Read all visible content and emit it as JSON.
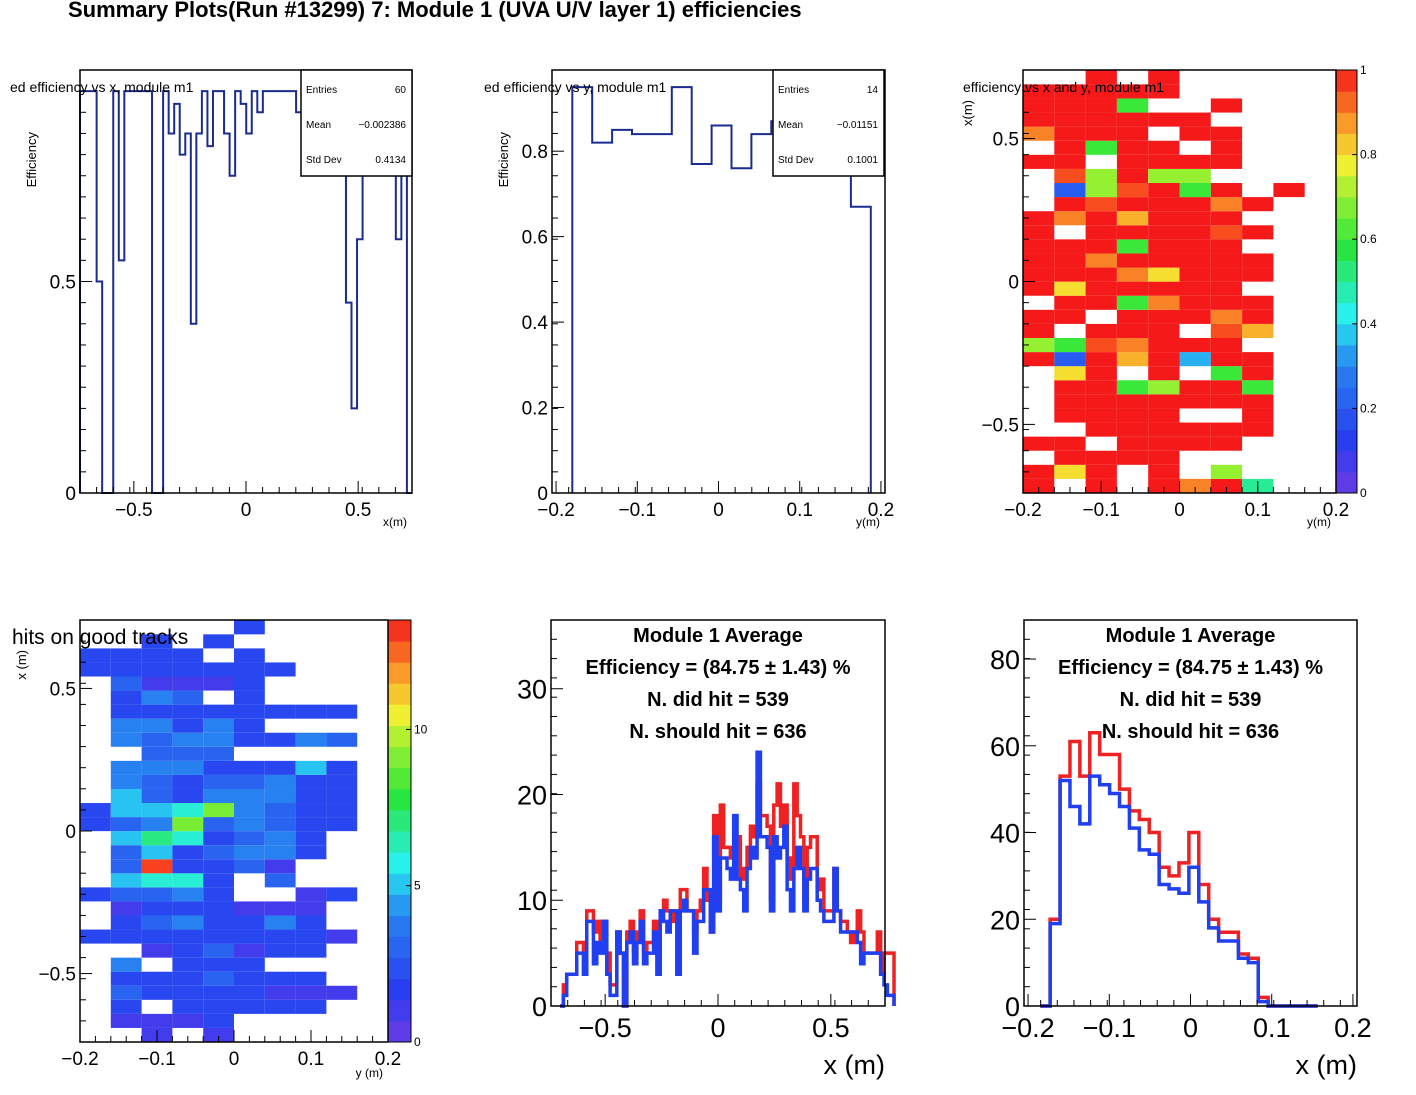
{
  "page_title": "Summary Plots(Run #13299) 7: Module 1 (UVA U/V layer 1) efficiencies",
  "colors": {
    "line": "#1a2c8f",
    "blue_hist": "#1f3ff0",
    "red_hist": "#ee2222",
    "frame": "#000000"
  },
  "chart_data": [
    {
      "type": "line",
      "title": "ed efficiency vs x, module m1",
      "xlabel": "x(m)",
      "ylabel": "Efficiency",
      "xlim": [
        -0.74,
        0.74
      ],
      "ylim": [
        0,
        1.0
      ],
      "xticks": [
        -0.5,
        0,
        0.5
      ],
      "xtick_labels": [
        "−0.5",
        "0",
        "0.5"
      ],
      "yticks": [
        0,
        0.5
      ],
      "ytick_labels": [
        "0",
        "0.5"
      ],
      "stats": {
        "Entries": "60",
        "Mean": "−0.002386",
        "Std Dev": "0.4134"
      },
      "x_edges_start": -0.74,
      "bin_width": 0.0247,
      "values": [
        0.95,
        0.95,
        0.95,
        0.5,
        0,
        0,
        0.95,
        0.55,
        0.95,
        0.95,
        0.95,
        0.95,
        0.95,
        0,
        0,
        0.95,
        0.85,
        0.92,
        0.8,
        0.85,
        0.4,
        0.85,
        0.95,
        0.82,
        0.95,
        0.95,
        0.85,
        0.75,
        0.95,
        0.92,
        0.85,
        0.95,
        0.9,
        0.95,
        0.95,
        0.95,
        0.95,
        0.95,
        0.95,
        0.9,
        0.95,
        0.95,
        0.95,
        0.95,
        0.95,
        0.95,
        0.95,
        0.95,
        0.45,
        0.2,
        0.6,
        0.95,
        0.95,
        0.95,
        0.95,
        0.95,
        0.85,
        0.6,
        0.95,
        0
      ]
    },
    {
      "type": "line",
      "title": "ed efficiency vs y, module m1",
      "xlabel": "y(m)",
      "ylabel": "Efficiency",
      "xlim": [
        -0.205,
        0.205
      ],
      "ylim": [
        0,
        0.99
      ],
      "xticks": [
        -0.2,
        -0.1,
        0,
        0.1,
        0.2
      ],
      "xtick_labels": [
        "−0.2",
        "−0.1",
        "0",
        "0.1",
        "0.2"
      ],
      "yticks": [
        0,
        0.2,
        0.4,
        0.6,
        0.8
      ],
      "ytick_labels": [
        "0",
        "0.2",
        "0.4",
        "0.6",
        "0.8"
      ],
      "stats": {
        "Entries": "14",
        "Mean": "−0.01151",
        "Std Dev": "0.1001"
      },
      "x_edges_start": -0.18,
      "bin_width": 0.0245,
      "values": [
        0.95,
        0.82,
        0.85,
        0.84,
        0.84,
        0.95,
        0.77,
        0.86,
        0.76,
        0.84,
        0.87,
        0.84,
        0.86,
        0.77,
        0.67
      ]
    },
    {
      "type": "heatmap",
      "title": "efficiency vs x and y, module m1",
      "xlabel": "y(m)",
      "ylabel": "x(m)",
      "xlim": [
        -0.2,
        0.2
      ],
      "ylim": [
        -0.74,
        0.74
      ],
      "xticks": [
        -0.2,
        -0.1,
        0,
        0.1,
        0.2
      ],
      "xtick_labels": [
        "−0.2",
        "−0.1",
        "0",
        "0.1",
        "0.2"
      ],
      "yticks": [
        -0.5,
        0,
        0.5
      ],
      "ytick_labels": [
        "−0.5",
        "0",
        "0.5"
      ],
      "zlim": [
        0,
        1
      ],
      "colorbar_labels": [
        "0",
        "0.2",
        "0.4",
        "0.6",
        "0.8",
        "1"
      ],
      "grid_x_start": -0.2,
      "grid_dx": 0.04,
      "grid_y_start": -0.74,
      "grid_dy": 0.0493,
      "cols": 9,
      "rows": 30,
      "cells": [
        [
          1,
          0,
          1,
          0,
          1,
          0.9,
          1,
          0.5,
          0
        ],
        [
          1,
          0.8,
          1,
          0,
          1,
          0,
          0.7,
          0,
          0
        ],
        [
          0,
          1,
          1,
          1,
          1,
          0,
          0,
          0,
          0
        ],
        [
          1,
          1,
          0,
          1,
          1,
          1,
          1,
          0,
          0
        ],
        [
          0,
          0,
          1,
          1,
          1,
          1,
          1,
          1,
          0
        ],
        [
          0,
          1,
          1,
          1,
          1,
          0,
          0,
          1,
          0
        ],
        [
          0,
          1,
          1,
          1,
          1,
          1,
          1,
          1,
          0
        ],
        [
          0,
          1,
          1,
          0.6,
          0.7,
          1,
          1,
          0.6,
          0
        ],
        [
          0,
          0.8,
          1,
          0,
          1,
          0,
          0.6,
          1,
          0
        ],
        [
          1,
          0.2,
          1,
          0.85,
          1,
          0.35,
          1,
          1,
          0
        ],
        [
          0.7,
          0.6,
          0.95,
          0.9,
          1,
          1,
          1,
          0,
          0
        ],
        [
          1,
          0,
          1,
          1,
          1,
          0,
          0.95,
          0.85,
          0
        ],
        [
          1,
          1,
          0,
          1,
          1,
          1,
          0.9,
          1,
          0
        ],
        [
          0,
          1,
          1,
          0.6,
          0.9,
          1,
          1,
          1,
          0
        ],
        [
          1,
          0.8,
          1,
          1,
          1,
          1,
          1,
          0,
          0
        ],
        [
          1,
          1,
          1,
          0.9,
          0.8,
          1,
          1,
          1,
          0
        ],
        [
          1,
          1,
          0.9,
          1,
          1,
          1,
          1,
          1,
          0
        ],
        [
          1,
          1,
          1,
          0.6,
          1,
          1,
          1,
          0,
          0
        ],
        [
          1,
          0,
          1,
          1,
          1,
          1,
          0.95,
          1,
          0
        ],
        [
          1,
          0.9,
          1,
          0.85,
          1,
          1,
          1,
          0,
          0
        ],
        [
          0,
          1,
          0.95,
          1,
          1,
          1,
          0.9,
          1,
          0
        ],
        [
          0,
          0.2,
          0.7,
          0.95,
          1,
          0.6,
          1,
          0,
          1
        ],
        [
          0,
          0.95,
          0.7,
          1,
          0.7,
          0.7,
          0,
          0,
          0
        ],
        [
          1,
          1,
          0,
          1,
          1,
          1,
          1,
          0,
          0
        ],
        [
          0,
          1,
          0.6,
          1,
          1,
          0,
          1,
          0,
          0
        ],
        [
          0.9,
          1,
          1,
          1,
          0,
          1,
          1,
          0,
          0
        ],
        [
          1,
          1,
          1,
          1,
          1,
          1,
          0,
          0,
          0
        ],
        [
          1,
          1,
          1,
          0.6,
          0,
          0,
          1,
          0,
          0
        ],
        [
          1,
          1,
          1,
          1,
          1,
          0,
          0,
          0,
          0
        ],
        [
          0,
          0,
          1,
          0,
          1,
          0,
          0,
          0,
          0
        ]
      ]
    },
    {
      "type": "heatmap",
      "title": "hits on good tracks",
      "xlabel": "y (m)",
      "ylabel": "x (m)",
      "xlim": [
        -0.2,
        0.2
      ],
      "ylim": [
        -0.74,
        0.74
      ],
      "xticks": [
        -0.2,
        -0.1,
        0,
        0.1,
        0.2
      ],
      "xtick_labels": [
        "−0.2",
        "−0.1",
        "0",
        "0.1",
        "0.2"
      ],
      "yticks": [
        -0.5,
        0,
        0.5
      ],
      "ytick_labels": [
        "−0.5",
        "0",
        "0.5"
      ],
      "zlim": [
        0,
        13.5
      ],
      "colorbar_labels": [
        "0",
        "5",
        "10"
      ],
      "grid_x_start": -0.2,
      "grid_dx": 0.04,
      "grid_y_start": -0.74,
      "grid_dy": 0.0493,
      "cols": 9,
      "rows": 30,
      "cells": [
        [
          0,
          0,
          1,
          0,
          1,
          0,
          0,
          0,
          0
        ],
        [
          0,
          1,
          1,
          1,
          2,
          0,
          0,
          0,
          0
        ],
        [
          0,
          2,
          0,
          2,
          2,
          2,
          2,
          2,
          0
        ],
        [
          0,
          3,
          2,
          2,
          2,
          2,
          1,
          1,
          1
        ],
        [
          0,
          2,
          2,
          2,
          3,
          2,
          2,
          2,
          0
        ],
        [
          0,
          4,
          0,
          2,
          2,
          2,
          0,
          0,
          0
        ],
        [
          0,
          0,
          1,
          2,
          3,
          1,
          2,
          2,
          0
        ],
        [
          2,
          2,
          2,
          2,
          2,
          2,
          2,
          2,
          1
        ],
        [
          0,
          2,
          3,
          4,
          2,
          2,
          4,
          2,
          0
        ],
        [
          0,
          1,
          2,
          2,
          2,
          1,
          1,
          1,
          0
        ],
        [
          2,
          3,
          3,
          4,
          2,
          0,
          0,
          1,
          2
        ],
        [
          0,
          5,
          6,
          6,
          2,
          0,
          3,
          0,
          0
        ],
        [
          0,
          3,
          13,
          2,
          2,
          3,
          1,
          0,
          0
        ],
        [
          0,
          3,
          5,
          2,
          3,
          4,
          4,
          2,
          0
        ],
        [
          0,
          5,
          7,
          6,
          2,
          3,
          4,
          2,
          0
        ],
        [
          2,
          3,
          4,
          9,
          3,
          4,
          3,
          2,
          2
        ],
        [
          2,
          5,
          5,
          6,
          9,
          4,
          3,
          2,
          2
        ],
        [
          0,
          5,
          3,
          2,
          4,
          4,
          4,
          2,
          2
        ],
        [
          0,
          4,
          3,
          2,
          3,
          3,
          4,
          2,
          2
        ],
        [
          0,
          4,
          4,
          4,
          2,
          2,
          2,
          5,
          2
        ],
        [
          0,
          0,
          3,
          3,
          3,
          0,
          0,
          0,
          0
        ],
        [
          0,
          4,
          3,
          4,
          4,
          2,
          2,
          4,
          3
        ],
        [
          0,
          4,
          4,
          2,
          4,
          2,
          0,
          0,
          0
        ],
        [
          0,
          2,
          2,
          2,
          2,
          2,
          2,
          2,
          2
        ],
        [
          0,
          2,
          4,
          3,
          0,
          2,
          0,
          0,
          0
        ],
        [
          0,
          3,
          1,
          1,
          1,
          2,
          0,
          0,
          0
        ],
        [
          2,
          2,
          2,
          2,
          2,
          2,
          2,
          0,
          0
        ],
        [
          2,
          2,
          2,
          2,
          0,
          2,
          0,
          0,
          0
        ],
        [
          0,
          0,
          2,
          0,
          2,
          0,
          0,
          0,
          0
        ],
        [
          0,
          0,
          0,
          0,
          0,
          2,
          0,
          0,
          0
        ]
      ]
    },
    {
      "type": "line",
      "title": "Module 1 Average",
      "annotations": [
        "Efficiency = (84.75  ±  1.43) %",
        "N. did hit = 539",
        "N. should hit = 636"
      ],
      "xlabel": "x (m)",
      "ylabel": "",
      "xlim": [
        -0.74,
        0.74
      ],
      "ylim": [
        0,
        36.5
      ],
      "xticks": [
        -0.5,
        0,
        0.5
      ],
      "xtick_labels": [
        "−0.5",
        "0",
        "0.5"
      ],
      "yticks": [
        0,
        10,
        20,
        30
      ],
      "ytick_labels": [
        "0",
        "10",
        "20",
        "30"
      ],
      "x_edges_start": -0.7,
      "bin_width": 0.0148,
      "series": [
        {
          "name": "should hit",
          "color": "#ee2222",
          "values": [
            0,
            2,
            3,
            3,
            3,
            6,
            6,
            5,
            9,
            9,
            7,
            8,
            6,
            8,
            5,
            2,
            2,
            7,
            5,
            0,
            7,
            8,
            5,
            7,
            9,
            5,
            6,
            6,
            8,
            5,
            9,
            10,
            9,
            8,
            9,
            3,
            11,
            11,
            9,
            9,
            7,
            9,
            10,
            13,
            10,
            7,
            18,
            10,
            19,
            15,
            15,
            14,
            16,
            16,
            12,
            13,
            15,
            17,
            16,
            21,
            18,
            18,
            17,
            10,
            19,
            21,
            17,
            19,
            14,
            12,
            21,
            18,
            16,
            10,
            15,
            16,
            16,
            11,
            12,
            9,
            9,
            9,
            13,
            9,
            8,
            8,
            7,
            6,
            7,
            9,
            7,
            5,
            5,
            5,
            5,
            7,
            3,
            5,
            5,
            5
          ]
        },
        {
          "name": "did hit",
          "color": "#1f3ff0",
          "values": [
            0,
            1,
            3,
            3,
            3,
            5,
            5,
            3,
            8,
            8,
            4,
            6,
            5,
            8,
            3,
            1,
            1,
            7,
            5,
            0,
            6,
            7,
            4,
            6,
            8,
            4,
            5,
            5,
            7,
            3,
            9,
            8,
            7,
            9,
            9,
            3,
            9,
            10,
            9,
            9,
            5,
            8,
            8,
            11,
            11,
            7,
            16,
            9,
            14,
            14,
            13,
            12,
            18,
            12,
            11,
            9,
            13,
            15,
            14,
            24,
            16,
            16,
            15,
            9,
            16,
            14,
            15,
            17,
            11,
            9,
            13,
            15,
            13,
            9,
            12,
            13,
            13,
            10,
            9,
            8,
            8,
            8,
            13,
            9,
            7,
            7,
            7,
            7,
            7,
            6,
            4,
            5,
            5,
            5,
            5,
            5,
            3,
            2,
            1,
            1
          ]
        }
      ]
    },
    {
      "type": "line",
      "title": "Module 1 Average",
      "annotations": [
        "Efficiency = (84.75  ±  1.43) %",
        "N. did hit = 539",
        "N. should hit = 636"
      ],
      "xlabel": "x (m)",
      "ylabel": "",
      "xlim": [
        -0.205,
        0.205
      ],
      "ylim": [
        0,
        89
      ],
      "xticks": [
        -0.2,
        -0.1,
        0,
        0.1,
        0.2
      ],
      "xtick_labels": [
        "−0.2",
        "−0.1",
        "0",
        "0.1",
        "0.2"
      ],
      "yticks": [
        0,
        20,
        40,
        60,
        80
      ],
      "ytick_labels": [
        "0",
        "20",
        "40",
        "60",
        "80"
      ],
      "x_edges_start": -0.185,
      "bin_width": 0.0122,
      "series": [
        {
          "name": "should hit",
          "color": "#ee2222",
          "values": [
            0,
            20,
            53,
            61,
            53,
            63,
            58,
            58,
            50,
            45,
            43,
            40,
            32,
            30,
            33,
            40,
            28,
            20,
            17,
            17,
            12,
            11,
            2,
            0,
            0,
            0,
            0,
            0
          ]
        },
        {
          "name": "did hit",
          "color": "#1f3ff0",
          "values": [
            0,
            19,
            52,
            46,
            42,
            53,
            51,
            49,
            46,
            41,
            36,
            35,
            28,
            27,
            26,
            32,
            24,
            18,
            15,
            15,
            11,
            10,
            1,
            0,
            0,
            0,
            0,
            0
          ]
        }
      ]
    }
  ]
}
